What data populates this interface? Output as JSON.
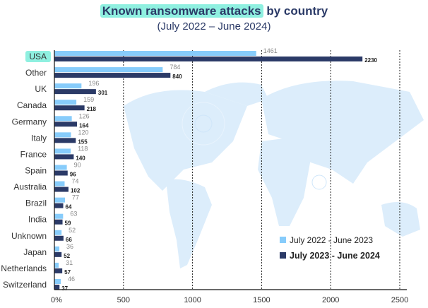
{
  "chart_data": {
    "type": "bar",
    "orientation": "horizontal",
    "title_highlight": "Known ransomware attacks",
    "title_rest": "by country",
    "subtitle": "(July 2022 – June 2024)",
    "categories": [
      "USA",
      "Other",
      "UK",
      "Canada",
      "Germany",
      "Italy",
      "France",
      "Spain",
      "Australia",
      "Brazil",
      "India",
      "Unknown",
      "Japan",
      "Netherlands",
      "Switzerland"
    ],
    "series": [
      {
        "name": "July 2022 - June 2023",
        "color": "#87ccfb",
        "values": [
          1461,
          784,
          196,
          159,
          126,
          120,
          118,
          90,
          74,
          77,
          63,
          52,
          36,
          31,
          46
        ]
      },
      {
        "name": "July 2023 - June 2024",
        "color": "#2b3a67",
        "values": [
          2230,
          840,
          301,
          218,
          164,
          155,
          140,
          96,
          102,
          64,
          59,
          66,
          52,
          57,
          37
        ]
      }
    ],
    "xticks": [
      "0%",
      "500",
      "1000",
      "1500",
      "2000",
      "2500"
    ],
    "xtick_values": [
      0,
      500,
      1000,
      1500,
      2000,
      2500
    ],
    "xlim": [
      0,
      2500
    ],
    "grid": "vertical dotted",
    "legend": "bottom-right",
    "highlight_category": "USA",
    "highlight_color": "#8ff0e0"
  }
}
